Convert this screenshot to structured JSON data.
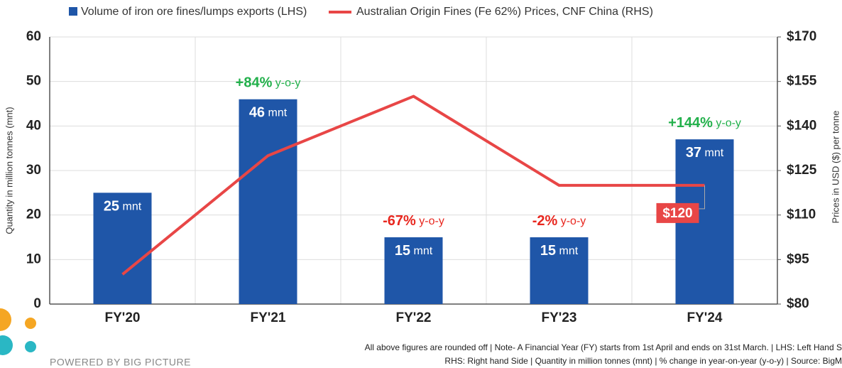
{
  "chart_data": {
    "type": "bar-line",
    "categories": [
      "FY'20",
      "FY'21",
      "FY'22",
      "FY'23",
      "FY'24"
    ],
    "series": [
      {
        "name": "Volume of iron ore fines/lumps exports (LHS)",
        "type": "bar",
        "color": "#1f56a8",
        "values": [
          25,
          46,
          15,
          15,
          37
        ],
        "value_labels": [
          "25 mnt",
          "46 mnt",
          "15 mnt",
          "15 mnt",
          "37 mnt"
        ],
        "change_labels": [
          null,
          "+84% y-o-y",
          "-67% y-o-y",
          "-2% y-o-y",
          "+144% y-o-y"
        ],
        "change_colors": [
          null,
          "#22b04b",
          "#e8271f",
          "#e8271f",
          "#22b04b"
        ]
      },
      {
        "name": "Australian Origin Fines (Fe 62%) Prices, CNF China (RHS)",
        "type": "line",
        "color": "#e84646",
        "axis": "y2",
        "values": [
          90,
          130,
          150,
          120,
          120
        ],
        "value_labels": [
          null,
          null,
          null,
          null,
          "$120"
        ]
      }
    ],
    "ylabel": "Quantity in million tonnes (mnt)",
    "y2label": "Prices in USD ($) per tonne",
    "ylim": [
      0,
      60
    ],
    "yticks": [
      0,
      10,
      20,
      30,
      40,
      50,
      60
    ],
    "y2lim": [
      80,
      170
    ],
    "y2ticks": [
      {
        "value": 80,
        "label": "$80"
      },
      {
        "value": 95,
        "label": "$95"
      },
      {
        "value": 110,
        "label": "$110"
      },
      {
        "value": 125,
        "label": "$125"
      },
      {
        "value": 140,
        "label": "$140"
      },
      {
        "value": 155,
        "label": "$155"
      },
      {
        "value": 170,
        "label": "$170"
      }
    ],
    "grid": true,
    "notes": [
      "All above figures are rounded off | Note- A Financial Year (FY) starts from 1st April and ends on 31st March. | LHS: Left Hand S",
      "RHS: Right hand Side | Quantity in million tonnes (mnt) | % change in year-on-year (y-o-y) | Source: BigM"
    ],
    "credit": "POWERED BY BIG PICTURE"
  }
}
